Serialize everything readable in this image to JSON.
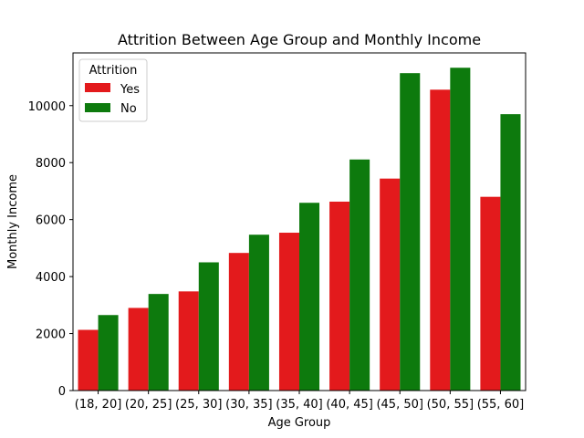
{
  "chart_data": {
    "type": "bar",
    "title": "Attrition Between Age Group and Monthly Income",
    "xlabel": "Age Group",
    "ylabel": "Monthly Income",
    "categories": [
      "(18, 20]",
      "(20, 25]",
      "(25, 30]",
      "(30, 35]",
      "(35, 40]",
      "(40, 45]",
      "(45, 50]",
      "(50, 55]",
      "(55, 60]"
    ],
    "legend_title": "Attrition",
    "legend_position": "top-left",
    "grid": false,
    "ylim": [
      0,
      11850
    ],
    "yticks": [
      0,
      2000,
      4000,
      6000,
      8000,
      10000
    ],
    "series": [
      {
        "name": "Yes",
        "color": "#e31a1c",
        "values": [
          2130,
          2900,
          3480,
          4830,
          5540,
          6630,
          7440,
          10560,
          6800
        ]
      },
      {
        "name": "No",
        "color": "#0d7a0d",
        "values": [
          2650,
          3390,
          4500,
          5470,
          6590,
          8110,
          11140,
          11330,
          9700
        ]
      }
    ]
  }
}
